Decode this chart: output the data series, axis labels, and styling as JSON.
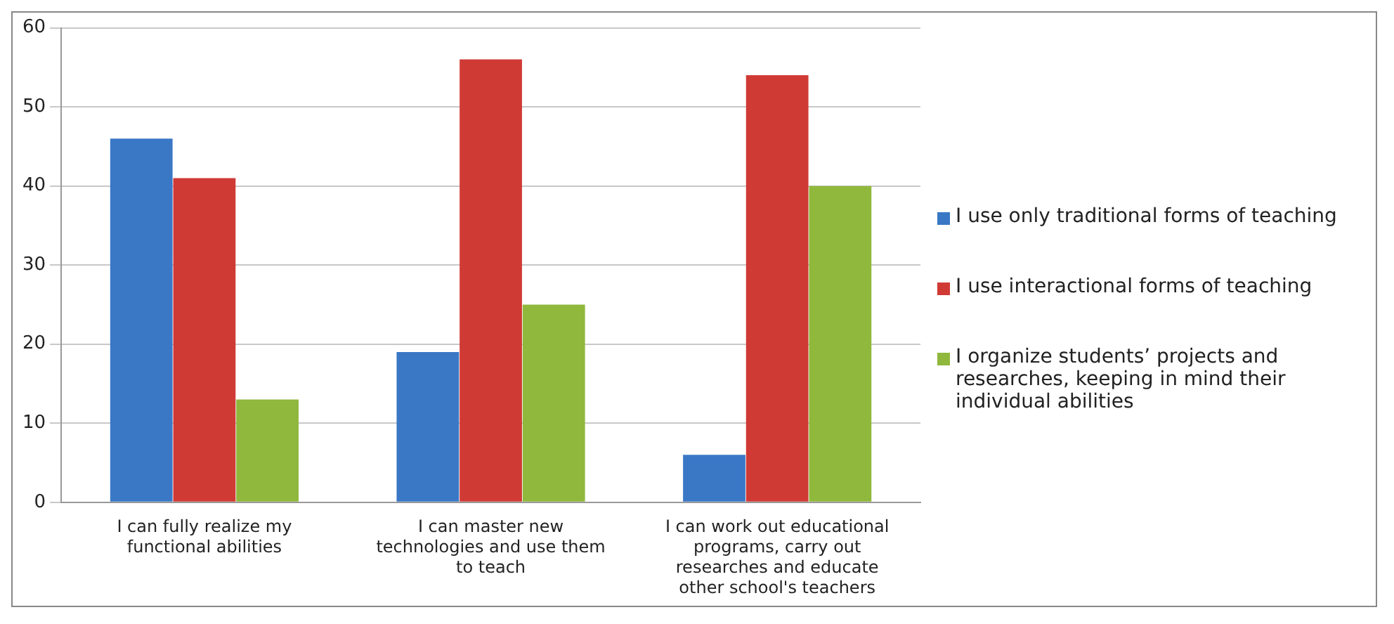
{
  "chart_data": {
    "type": "bar",
    "categories": [
      "I can fully realize my functional abilities",
      "I can master new technologies and use them to teach",
      "I can work out educational programs, carry out researches and educate other school's teachers"
    ],
    "series": [
      {
        "name": "I use only traditional forms of teaching",
        "color": "#3a78c6",
        "values": [
          46,
          19,
          6
        ]
      },
      {
        "name": "I use interactional forms of teaching",
        "color": "#d03a35",
        "values": [
          41,
          56,
          54
        ]
      },
      {
        "name": "I organize students’ projects and researches, keeping in mind their individual abilities",
        "color": "#8fb83c",
        "values": [
          13,
          25,
          40
        ]
      }
    ],
    "ylim": [
      0,
      60
    ],
    "yticks": [
      0,
      10,
      20,
      30,
      40,
      50,
      60
    ],
    "grid": "y",
    "legend": "right"
  }
}
